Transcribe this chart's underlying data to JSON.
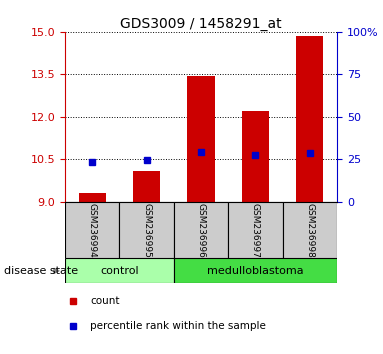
{
  "title": "GDS3009 / 1458291_at",
  "samples": [
    "GSM236994",
    "GSM236995",
    "GSM236996",
    "GSM236997",
    "GSM236998"
  ],
  "red_bar_tops": [
    9.3,
    10.1,
    13.45,
    12.2,
    14.85
  ],
  "red_bar_bottom": 9.0,
  "blue_y_values": [
    10.42,
    10.47,
    10.77,
    10.65,
    10.72
  ],
  "left_ylim": [
    9.0,
    15.0
  ],
  "left_yticks": [
    9,
    10.5,
    12,
    13.5,
    15
  ],
  "right_ylim": [
    0,
    100
  ],
  "right_yticks": [
    0,
    25,
    50,
    75,
    100
  ],
  "right_yticklabels": [
    "0",
    "25",
    "50",
    "75",
    "100%"
  ],
  "left_axis_color": "#cc0000",
  "right_axis_color": "#0000cc",
  "bar_color": "#cc0000",
  "dot_color": "#0000cc",
  "groups": [
    {
      "label": "control",
      "indices": [
        0,
        1
      ],
      "color": "#aaffaa"
    },
    {
      "label": "medulloblastoma",
      "indices": [
        2,
        3,
        4
      ],
      "color": "#44dd44"
    }
  ],
  "group_label_text": "disease state",
  "legend_items": [
    {
      "color": "#cc0000",
      "label": "count"
    },
    {
      "color": "#0000cc",
      "label": "percentile rank within the sample"
    }
  ],
  "grid_color": "black",
  "sample_box_color": "#cccccc",
  "bar_width": 0.5,
  "figsize": [
    3.83,
    3.54
  ],
  "dpi": 100
}
